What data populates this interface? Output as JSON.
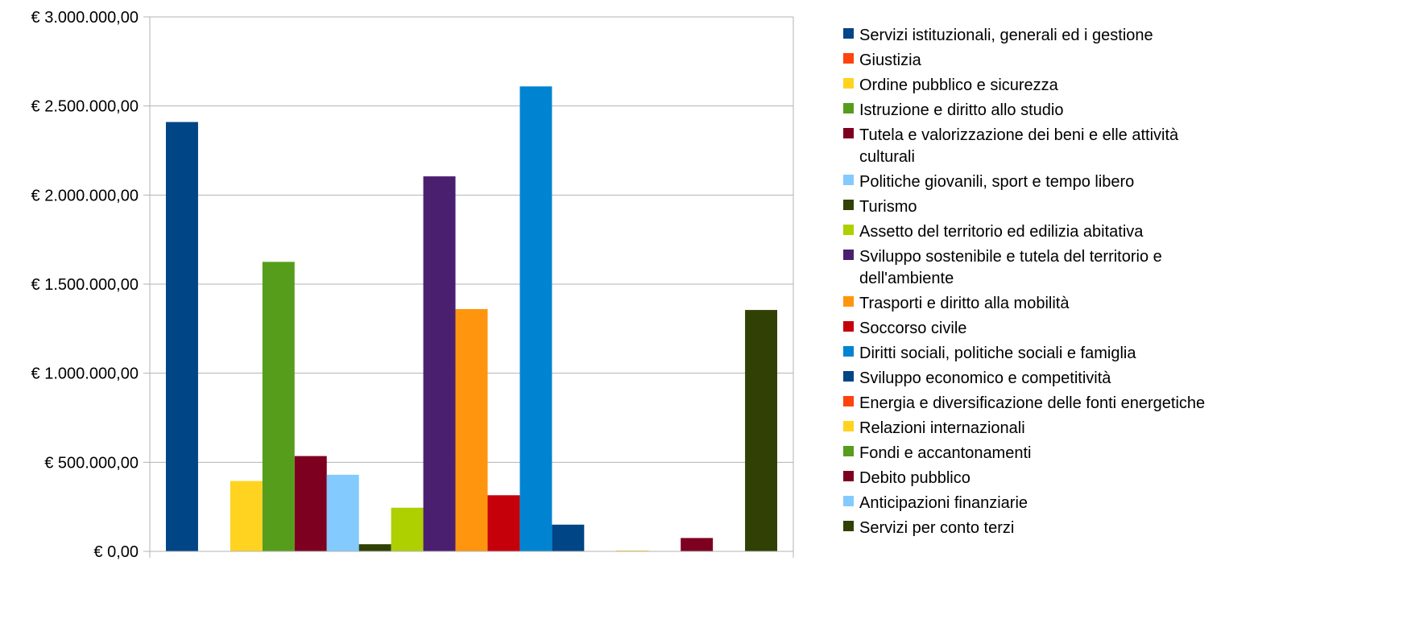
{
  "chart_data": {
    "type": "bar",
    "title": "",
    "xlabel": "",
    "ylabel": "",
    "ylim": [
      0,
      3000000
    ],
    "yticks": [
      0,
      500000,
      1000000,
      1500000,
      2000000,
      2500000,
      3000000
    ],
    "ytick_labels": [
      "€ 0,00",
      "€ 500.000,00",
      "€ 1.000.000,00",
      "€ 1.500.000,00",
      "€ 2.000.000,00",
      "€ 2.500.000,00",
      "€ 3.000.000,00"
    ],
    "grid": true,
    "legend_position": "right",
    "series": [
      {
        "name": "Servizi istituzionali, generali ed i gestione",
        "values": [
          2410000
        ],
        "color": "#004586"
      },
      {
        "name": "Giustizia",
        "values": [
          0
        ],
        "color": "#ff420e"
      },
      {
        "name": "Ordine pubblico e sicurezza",
        "values": [
          395000
        ],
        "color": "#ffd320"
      },
      {
        "name": "Istruzione e diritto allo studio",
        "values": [
          1625000
        ],
        "color": "#579d1c"
      },
      {
        "name": "Tutela e valorizzazione dei beni e elle attività culturali",
        "values": [
          535000
        ],
        "color": "#7e0021"
      },
      {
        "name": "Politiche giovanili, sport e tempo libero",
        "values": [
          430000
        ],
        "color": "#83caff"
      },
      {
        "name": "Turismo",
        "values": [
          40000
        ],
        "color": "#314004"
      },
      {
        "name": "Assetto del territorio ed edilizia abitativa",
        "values": [
          245000
        ],
        "color": "#aecf00"
      },
      {
        "name": "Sviluppo sostenibile e tutela del territorio e dell'ambiente",
        "values": [
          2105000
        ],
        "color": "#4b1f6f"
      },
      {
        "name": "Trasporti e diritto alla mobilità",
        "values": [
          1360000
        ],
        "color": "#ff950e"
      },
      {
        "name": "Soccorso civile",
        "values": [
          315000
        ],
        "color": "#c5000b"
      },
      {
        "name": "Diritti sociali, politiche sociali e famiglia",
        "values": [
          2610000
        ],
        "color": "#0084d1"
      },
      {
        "name": "Sviluppo economico e competitività",
        "values": [
          150000
        ],
        "color": "#004586"
      },
      {
        "name": "Energia e diversificazione delle fonti energetiche",
        "values": [
          0
        ],
        "color": "#ff420e"
      },
      {
        "name": "Relazioni internazionali",
        "values": [
          5000
        ],
        "color": "#ffd320"
      },
      {
        "name": "Fondi e accantonamenti",
        "values": [
          0
        ],
        "color": "#579d1c"
      },
      {
        "name": "Debito pubblico",
        "values": [
          75000
        ],
        "color": "#7e0021"
      },
      {
        "name": "Anticipazioni finanziarie",
        "values": [
          0
        ],
        "color": "#83caff"
      },
      {
        "name": "Servizi per conto terzi",
        "values": [
          1355000
        ],
        "color": "#314004"
      }
    ]
  }
}
